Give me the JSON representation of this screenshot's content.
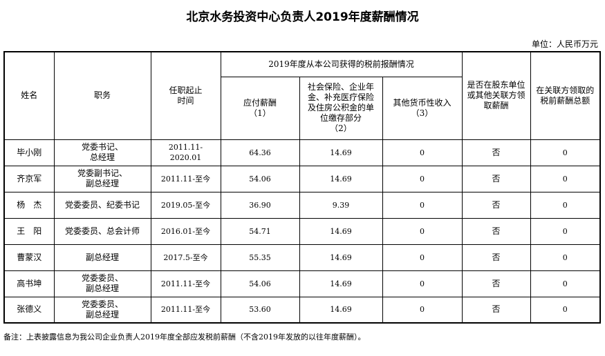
{
  "title": "北京水务投资中心负责人2019年度薪酬情况",
  "unit": "单位：人民币万元",
  "headers": {
    "name": "姓名",
    "position": "职务",
    "term": "任职起止\n时间",
    "group": "2019年度从本公司获得的税前报酬情况",
    "salary": "应付薪酬\n（1）",
    "insurance": "社会保险、企业年金、补充医疗保险及住房公积金的单位缴存部分\n（2）",
    "other": "其他货币性收入\n（3）",
    "shareholder": "是否在股东单位或其他关联方领取薪酬",
    "related": "在关联方领取的税前薪酬总额"
  },
  "rows": [
    {
      "name": "毕小刚",
      "position": "党委书记、\n总经理",
      "term": "2011.11-\n2020.01",
      "salary": "64.36",
      "insurance": "14.69",
      "other": "0",
      "shareholder": "否",
      "related": "0"
    },
    {
      "name": "齐京军",
      "position": "党委副书记、\n副总经理",
      "term": "2011.11-至今",
      "salary": "54.06",
      "insurance": "14.69",
      "other": "0",
      "shareholder": "否",
      "related": "0"
    },
    {
      "name": "杨　杰",
      "position": "党委委员、纪委书记",
      "term": "2019.05-至今",
      "salary": "36.90",
      "insurance": "9.39",
      "other": "0",
      "shareholder": "否",
      "related": "0"
    },
    {
      "name": "王　阳",
      "position": "党委委员、总会计师",
      "term": "2016.01-至今",
      "salary": "54.71",
      "insurance": "14.69",
      "other": "0",
      "shareholder": "否",
      "related": "0"
    },
    {
      "name": "曹蒙汉",
      "position": "副总经理",
      "term": "2017.5-至今",
      "salary": "55.35",
      "insurance": "14.69",
      "other": "0",
      "shareholder": "否",
      "related": "0"
    },
    {
      "name": "高书坤",
      "position": "党委委员、\n副总经理",
      "term": "2011.11-至今",
      "salary": "54.06",
      "insurance": "14.69",
      "other": "0",
      "shareholder": "否",
      "related": "0"
    },
    {
      "name": "张德义",
      "position": "党委委员、\n副总经理",
      "term": "2011.11-至今",
      "salary": "53.60",
      "insurance": "14.69",
      "other": "0",
      "shareholder": "否",
      "related": "0"
    }
  ],
  "note": "备注：上表披露信息为我公司企业负责人2019年度全部应发税前薪酬（不含2019年发放的以往年度薪酬）。"
}
